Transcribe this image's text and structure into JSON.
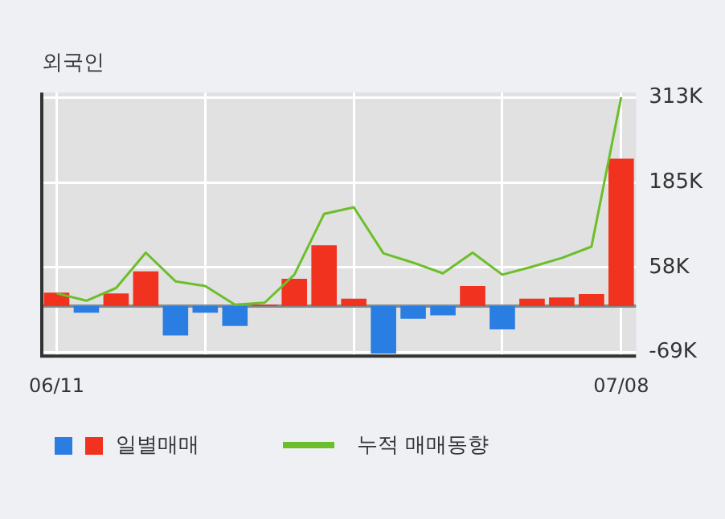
{
  "chart_data": {
    "type": "bar",
    "title": "외국인",
    "categories": [
      "06/11",
      null,
      null,
      null,
      null,
      null,
      null,
      null,
      null,
      null,
      null,
      null,
      null,
      null,
      null,
      null,
      null,
      null,
      null,
      "07/08"
    ],
    "series": [
      {
        "name": "일별매매",
        "values": [
          20,
          -10,
          19,
          52,
          -44,
          -10,
          -30,
          2,
          41,
          91,
          11,
          -71,
          -19,
          -14,
          30,
          -35,
          11,
          13,
          18,
          221
        ],
        "colors": [
          "#f0321e",
          "#2a7de1",
          "#f0321e",
          "#f0321e",
          "#2a7de1",
          "#2a7de1",
          "#2a7de1",
          "#f0321e",
          "#f0321e",
          "#f0321e",
          "#f0321e",
          "#2a7de1",
          "#2a7de1",
          "#2a7de1",
          "#f0321e",
          "#2a7de1",
          "#f0321e",
          "#f0321e",
          "#f0321e",
          "#f0321e"
        ]
      },
      {
        "name": "누적 매매동향",
        "type": "line",
        "color": "#6cbf2a",
        "values": [
          19,
          8,
          27,
          80,
          37,
          30,
          2,
          5,
          47,
          138,
          148,
          79,
          65,
          49,
          80,
          47,
          59,
          72,
          89,
          313
        ]
      }
    ],
    "ylim": [
      -75,
      320
    ],
    "yticks": [
      {
        "value": -69,
        "label": "-69K"
      },
      {
        "value": 58,
        "label": "58K"
      },
      {
        "value": 185,
        "label": "185K"
      },
      {
        "value": 313,
        "label": "313K"
      }
    ],
    "grid": true,
    "legend": "bottom",
    "marker": "none",
    "line_style": "solid"
  }
}
